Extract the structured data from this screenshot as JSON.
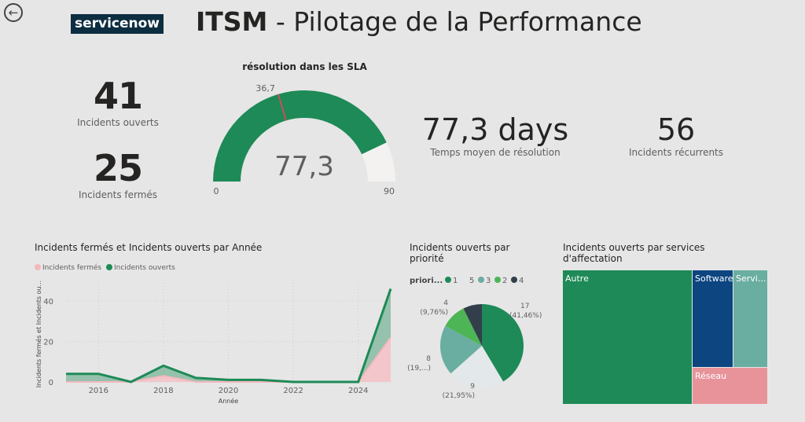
{
  "header": {
    "logo": "servicenow",
    "title_bold": "ITSM",
    "title_rest": "- Pilotage de la Performance"
  },
  "kpis": {
    "open": {
      "value": "41",
      "label": "Incidents ouverts"
    },
    "closed": {
      "value": "25",
      "label": "Incidents fermés"
    },
    "avg": {
      "value": "77,3 days",
      "label": "Temps moyen de résolution"
    },
    "recurrent": {
      "value": "56",
      "label": "Incidents récurrents"
    }
  },
  "gauge": {
    "title": "résolution dans les SLA",
    "value": 77.3,
    "value_label": "77,3",
    "target": 36.7,
    "target_label": "36,7",
    "min": 0,
    "min_label": "0",
    "max": 90,
    "max_label": "90",
    "color": "#1e8a57"
  },
  "chart_data": [
    {
      "type": "area",
      "title": "Incidents fermés et Incidents ouverts par Année",
      "xlabel": "Année",
      "ylabel": "Incidents fermés et Incidents ou...",
      "x": [
        2015,
        2016,
        2017,
        2018,
        2019,
        2020,
        2021,
        2022,
        2023,
        2024,
        2025
      ],
      "xticks": [
        "2016",
        "2018",
        "2020",
        "2022",
        "2024"
      ],
      "yticks": [
        "0",
        "20",
        "40"
      ],
      "ylim": [
        0,
        50
      ],
      "series": [
        {
          "name": "Incidents fermés",
          "color": "#f2b8bd",
          "values": [
            0,
            0,
            0,
            3,
            0,
            0,
            0,
            0,
            0,
            0,
            22
          ]
        },
        {
          "name": "Incidents ouverts",
          "color": "#1e8a57",
          "values": [
            4,
            4,
            0,
            5,
            2,
            1,
            1,
            0,
            0,
            0,
            24
          ]
        }
      ]
    },
    {
      "type": "pie",
      "title": "Incidents ouverts par priorité",
      "legend_title": "priori...",
      "slices": [
        {
          "name": "1",
          "value": 17,
          "label": "17",
          "pct": "(41,46%)",
          "color": "#1e8a57"
        },
        {
          "name": "5",
          "value": 9,
          "label": "9",
          "pct": "(21,95%)",
          "color": "#e3e8ea"
        },
        {
          "name": "3",
          "value": 8,
          "label": "8",
          "pct": "(19,...)",
          "color": "#6aaea1"
        },
        {
          "name": "2",
          "value": 4,
          "label": "4",
          "pct": "(9,76%)",
          "color": "#4db555"
        },
        {
          "name": "4",
          "value": 3,
          "label": "",
          "pct": "",
          "color": "#323f4b"
        }
      ]
    },
    {
      "type": "treemap",
      "title": "Incidents ouverts par services d'affectation",
      "items": [
        {
          "name": "Autre",
          "color": "#1e8a57"
        },
        {
          "name": "Software",
          "color": "#0c4580"
        },
        {
          "name": "Servi...",
          "color": "#6aaea1"
        },
        {
          "name": "Réseau",
          "color": "#e8939a"
        }
      ]
    }
  ]
}
